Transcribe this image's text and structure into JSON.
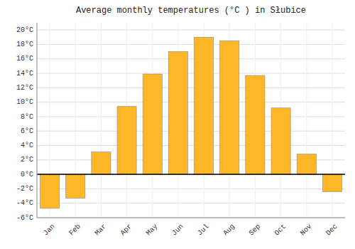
{
  "chart_data": {
    "type": "bar",
    "title": "Average monthly temperatures (°C ) in Słubice",
    "categories": [
      "Jan",
      "Feb",
      "Mar",
      "Apr",
      "May",
      "Jun",
      "Jul",
      "Aug",
      "Sep",
      "Oct",
      "Nov",
      "Dec"
    ],
    "values": [
      -4.7,
      -3.3,
      3.1,
      9.4,
      13.9,
      17.0,
      19.0,
      18.5,
      13.7,
      9.2,
      2.8,
      -2.4
    ],
    "color": "#FFB727",
    "ylim": [
      -6,
      21
    ],
    "yticks": [
      {
        "value": -6,
        "label": "-6°C"
      },
      {
        "value": -4,
        "label": "-4°C"
      },
      {
        "value": -2,
        "label": "-2°C"
      },
      {
        "value": 0,
        "label": "0°C"
      },
      {
        "value": 2,
        "label": "2°C"
      },
      {
        "value": 4,
        "label": "4°C"
      },
      {
        "value": 6,
        "label": "6°C"
      },
      {
        "value": 8,
        "label": "8°C"
      },
      {
        "value": 10,
        "label": "10°C"
      },
      {
        "value": 12,
        "label": "12°C"
      },
      {
        "value": 14,
        "label": "14°C"
      },
      {
        "value": 16,
        "label": "16°C"
      },
      {
        "value": 18,
        "label": "18°C"
      },
      {
        "value": 20,
        "label": "20°C"
      }
    ],
    "grid": true
  }
}
